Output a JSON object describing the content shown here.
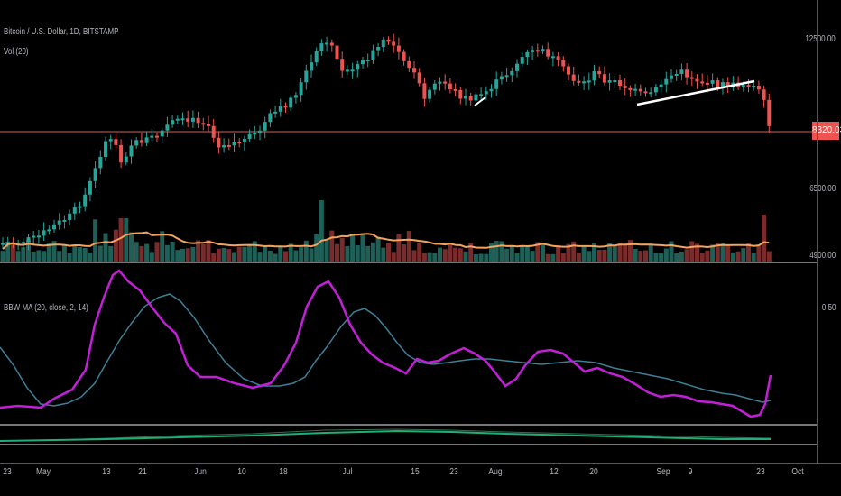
{
  "symbol_title": "Bitcoin / U.S. Dollar, 1D, BITSTAMP",
  "volume_legend": "Vol (20)",
  "indicator_legend": "BBW MA (20, close, 2, 14)",
  "price_axis": {
    "tick_12500": "12500.00",
    "tick_6500": "6500.00",
    "tick_4900": "4900.00"
  },
  "indicator_axis": {
    "tick_050": "0.50"
  },
  "last_price_tag": "8320.03",
  "time_axis": [
    "23",
    "May",
    "13",
    "21",
    "Jun",
    "10",
    "18",
    "Jul",
    "15",
    "23",
    "Aug",
    "12",
    "20",
    "Sep",
    "9",
    "23",
    "Oct"
  ],
  "colors": {
    "up": "#26a69a",
    "down": "#ef5350",
    "bbw": "#c31fd9",
    "bbw_ma": "#3d7f97",
    "vol_ma": "#f5a35c",
    "price_line": "#ef5350",
    "bottom_green": "#1fae7a"
  },
  "icons": [
    "trendline-drawing",
    "trendline-drawing"
  ]
}
